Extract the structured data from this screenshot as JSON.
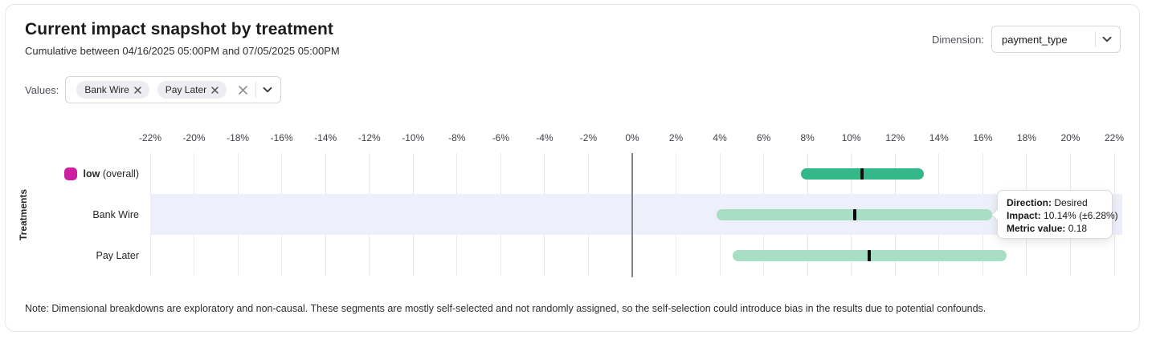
{
  "header": {
    "title": "Current impact snapshot by treatment",
    "subtitle": "Cumulative between 04/16/2025 05:00PM and 07/05/2025 05:00PM",
    "dimension_label": "Dimension:",
    "dimension_value": "payment_type"
  },
  "filters": {
    "values_label": "Values:",
    "chips": [
      {
        "label": "Bank Wire"
      },
      {
        "label": "Pay Later"
      }
    ]
  },
  "chart_data": {
    "type": "range_bar",
    "title": "",
    "xlabel": "",
    "ylabel": "Treatments",
    "xlim": [
      -22,
      22
    ],
    "x_tick_values": [
      -22,
      -20,
      -18,
      -16,
      -14,
      -12,
      -10,
      -8,
      -6,
      -4,
      -2,
      0,
      2,
      4,
      6,
      8,
      10,
      12,
      14,
      16,
      18,
      20,
      22
    ],
    "x_tick_labels": [
      "-22%",
      "-20%",
      "-18%",
      "-16%",
      "-14%",
      "-12%",
      "-10%",
      "-8%",
      "-6%",
      "-4%",
      "-2%",
      "0%",
      "2%",
      "4%",
      "6%",
      "8%",
      "10%",
      "12%",
      "14%",
      "16%",
      "18%",
      "20%",
      "22%"
    ],
    "grid": true,
    "zero_line": true,
    "rows": [
      {
        "name": "low (overall)",
        "label": "low",
        "label_suffix": "(overall)",
        "legend_color": "#cc20a0",
        "bar_color": "#34b789",
        "low": 7.7,
        "center": 10.5,
        "high": 13.3,
        "highlighted": false
      },
      {
        "name": "Bank Wire",
        "label": "Bank Wire",
        "bar_color": "#a8dec4",
        "low": 3.86,
        "center": 10.14,
        "high": 16.42,
        "highlighted": true
      },
      {
        "name": "Pay Later",
        "label": "Pay Later",
        "bar_color": "#a8dec4",
        "low": 4.6,
        "center": 10.8,
        "high": 17.1,
        "highlighted": false
      }
    ]
  },
  "tooltip": {
    "direction_label": "Direction:",
    "direction_value": "Desired",
    "impact_label": "Impact:",
    "impact_value": "10.14% (±6.28%)",
    "metric_label": "Metric value:",
    "metric_value": "0.18"
  },
  "note": "Note: Dimensional breakdowns are exploratory and non-causal. These segments are mostly self-selected and not randomly assigned, so the self-selection could introduce bias in the results due to potential confounds.",
  "colors": {
    "row_highlight": "#edeffa",
    "gridline": "#e9e9ec",
    "zero_line": "#85858c",
    "marker": "#0b0b0b",
    "accent_green": "#34b789",
    "light_green": "#a8dec4",
    "magenta": "#cc20a0"
  }
}
